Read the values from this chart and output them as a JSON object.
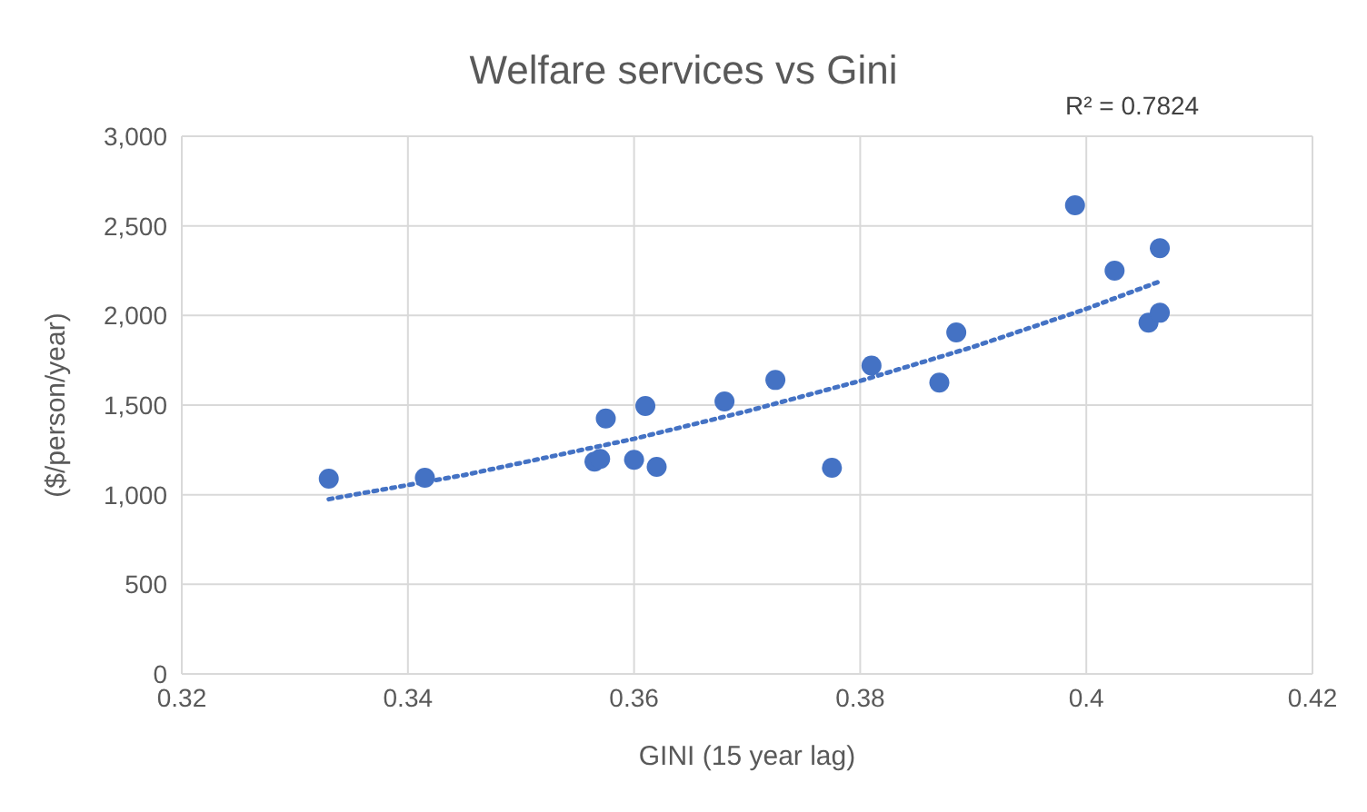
{
  "chart_data": {
    "type": "scatter",
    "title": "Welfare services vs Gini",
    "xlabel": "GINI (15 year lag)",
    "ylabel": "($/person/year)",
    "annotations": [
      "R² = 0.7824"
    ],
    "xlim": [
      0.32,
      0.42
    ],
    "xticks": [
      {
        "value": 0.32,
        "label": "0.32"
      },
      {
        "value": 0.34,
        "label": "0.34"
      },
      {
        "value": 0.36,
        "label": "0.36"
      },
      {
        "value": 0.38,
        "label": "0.38"
      },
      {
        "value": 0.4,
        "label": "0.4"
      },
      {
        "value": 0.42,
        "label": "0.42"
      }
    ],
    "ylim": [
      0,
      3000
    ],
    "yticks": [
      {
        "value": 0,
        "label": "0"
      },
      {
        "value": 500,
        "label": "500"
      },
      {
        "value": 1000,
        "label": "1,000"
      },
      {
        "value": 1500,
        "label": "1,500"
      },
      {
        "value": 2000,
        "label": "2,000"
      },
      {
        "value": 2500,
        "label": "2,500"
      },
      {
        "value": 3000,
        "label": "3,000"
      }
    ],
    "grid": true,
    "series": [
      {
        "color": "#4472c4",
        "marker": "circle",
        "x": [
          0.333,
          0.3415,
          0.3565,
          0.357,
          0.3575,
          0.36,
          0.361,
          0.362,
          0.368,
          0.3725,
          0.3775,
          0.381,
          0.387,
          0.3885,
          0.399,
          0.4025,
          0.4055,
          0.4065,
          0.4065
        ],
        "values": [
          1090,
          1095,
          1185,
          1200,
          1425,
          1195,
          1495,
          1155,
          1520,
          1640,
          1150,
          1720,
          1625,
          1905,
          2615,
          2250,
          1960,
          2015,
          2375
        ]
      },
      {
        "type": "line",
        "color": "#4472c4",
        "line_style": "dotted",
        "marker": "none",
        "x": [
          0.333,
          0.345,
          0.36,
          0.37,
          0.38,
          0.39,
          0.4,
          0.4065
        ],
        "values": [
          975,
          1110,
          1312,
          1466,
          1635,
          1825,
          2037,
          2190
        ]
      }
    ]
  }
}
